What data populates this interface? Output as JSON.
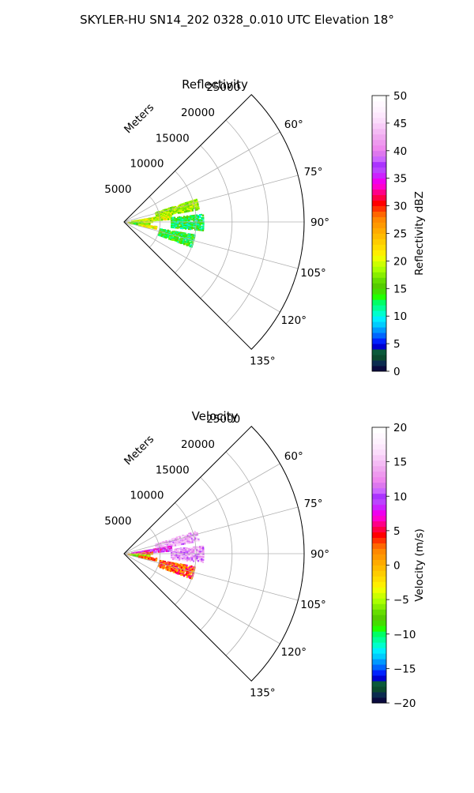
{
  "figure": {
    "suptitle": "SKYLER-HU  SN14_202  0328_0.010 UTC Elevation 18°"
  },
  "chart_data": [
    {
      "type": "polar-sector",
      "title": "Reflectivity",
      "range_label": "Meters",
      "range_ticks": [
        5000,
        10000,
        15000,
        20000,
        25000
      ],
      "range_tick_labels": [
        "5000",
        "10000",
        "15000",
        "20000",
        "25000"
      ],
      "rmax": 25000,
      "angle_ticks": [
        60,
        75,
        90,
        105,
        120,
        135
      ],
      "angle_tick_labels": [
        "60°",
        "75°",
        "90°",
        "105°",
        "120°",
        "135°"
      ],
      "angle_range": [
        45,
        135
      ],
      "grid": true,
      "colorbar": {
        "label": "Reflectivity dBZ",
        "min": 0,
        "max": 50,
        "ticks": [
          0,
          5,
          10,
          15,
          20,
          25,
          30,
          35,
          40,
          45,
          50
        ],
        "tick_labels": [
          "0",
          "5",
          "10",
          "15",
          "20",
          "25",
          "30",
          "35",
          "40",
          "45",
          "50"
        ],
        "colors": [
          "#0b0b3f",
          "#0b2b4f",
          "#0b4a2e",
          "#0b5a3a",
          "#0000d0",
          "#0022ff",
          "#0066ff",
          "#0099ff",
          "#00ccff",
          "#00eeff",
          "#00ffcc",
          "#00ff99",
          "#00ff66",
          "#22ff00",
          "#44dd00",
          "#55cc00",
          "#66dd00",
          "#88ee00",
          "#aaff00",
          "#ccff00",
          "#eeff00",
          "#ffee00",
          "#ffdd00",
          "#ffcc00",
          "#ffbb00",
          "#ffaa00",
          "#ff9900",
          "#ff8800",
          "#ff6600",
          "#ff3300",
          "#ff0000",
          "#ff0044",
          "#ff0088",
          "#ff00cc",
          "#ee00ee",
          "#cc22ff",
          "#bb44ff",
          "#aa33ff",
          "#cc66ff",
          "#dd77ee",
          "#ee88ee",
          "#ee99ee",
          "#f0aaf0",
          "#f4bbf4",
          "#f8ccf8",
          "#fbddfb",
          "#fde8fd",
          "#fef2fe",
          "#fff8ff",
          "#ffffff"
        ]
      },
      "echo_regions": [
        {
          "az": [
            72,
            80
          ],
          "r": [
            4500,
            10500
          ],
          "value": 18
        },
        {
          "az": [
            80,
            86
          ],
          "r": [
            1000,
            6500
          ],
          "value": 20
        },
        {
          "az": [
            86,
            89
          ],
          "r": [
            500,
            4000
          ],
          "value": 19
        },
        {
          "az": [
            92,
            97
          ],
          "r": [
            800,
            3500
          ],
          "value": 16
        },
        {
          "az": [
            97,
            101
          ],
          "r": [
            2000,
            4500
          ],
          "value": 21
        },
        {
          "az": [
            84,
            96
          ],
          "r": [
            6500,
            11000
          ],
          "value": 13
        },
        {
          "az": [
            100,
            110
          ],
          "r": [
            5000,
            10000
          ],
          "value": 14
        }
      ]
    },
    {
      "type": "polar-sector",
      "title": "Velocity",
      "range_label": "Meters",
      "range_ticks": [
        5000,
        10000,
        15000,
        20000,
        25000
      ],
      "range_tick_labels": [
        "5000",
        "10000",
        "15000",
        "20000",
        "25000"
      ],
      "rmax": 25000,
      "angle_ticks": [
        60,
        75,
        90,
        105,
        120,
        135
      ],
      "angle_tick_labels": [
        "60°",
        "75°",
        "90°",
        "105°",
        "120°",
        "135°"
      ],
      "angle_range": [
        45,
        135
      ],
      "grid": true,
      "colorbar": {
        "label": "Velocity (m/s)",
        "min": -20,
        "max": 20,
        "ticks": [
          -20,
          -15,
          -10,
          -5,
          0,
          5,
          10,
          15,
          20
        ],
        "tick_labels": [
          "−20",
          "−15",
          "−10",
          "−5",
          "0",
          "5",
          "10",
          "15",
          "20"
        ],
        "colors": [
          "#0b0b3f",
          "#0b2b4f",
          "#0b4a2e",
          "#0b5a3a",
          "#0000d0",
          "#0022ff",
          "#0066ff",
          "#0099ff",
          "#00ccff",
          "#00eeff",
          "#00ffcc",
          "#00ff99",
          "#00ff66",
          "#22ff00",
          "#44dd00",
          "#55cc00",
          "#66dd00",
          "#88ee00",
          "#aaff00",
          "#ccff00",
          "#eeff00",
          "#ffee00",
          "#ffdd00",
          "#ffcc00",
          "#ffbb00",
          "#ffaa00",
          "#ff9900",
          "#ff8800",
          "#ff6600",
          "#ff3300",
          "#ff0000",
          "#ff0044",
          "#ff0088",
          "#ff00cc",
          "#ee00ee",
          "#cc22ff",
          "#bb44ff",
          "#aa33ff",
          "#cc66ff",
          "#dd77ee",
          "#ee88ee",
          "#ee99ee",
          "#f0aaf0",
          "#f4bbf4",
          "#f8ccf8",
          "#fbddfb",
          "#fde8fd",
          "#fef2fe",
          "#fff8ff",
          "#ffffff"
        ]
      },
      "echo_regions": [
        {
          "az": [
            72,
            80
          ],
          "r": [
            4500,
            10500
          ],
          "value": 14
        },
        {
          "az": [
            80,
            86
          ],
          "r": [
            1000,
            6500
          ],
          "value": 9
        },
        {
          "az": [
            86,
            89
          ],
          "r": [
            500,
            4000
          ],
          "value": 3
        },
        {
          "az": [
            92,
            97
          ],
          "r": [
            800,
            3500
          ],
          "value": -6
        },
        {
          "az": [
            97,
            101
          ],
          "r": [
            2000,
            4500
          ],
          "value": 2
        },
        {
          "az": [
            84,
            96
          ],
          "r": [
            6500,
            11000
          ],
          "value": 13
        },
        {
          "az": [
            100,
            110
          ],
          "r": [
            5000,
            10000
          ],
          "value": 3
        }
      ]
    }
  ]
}
